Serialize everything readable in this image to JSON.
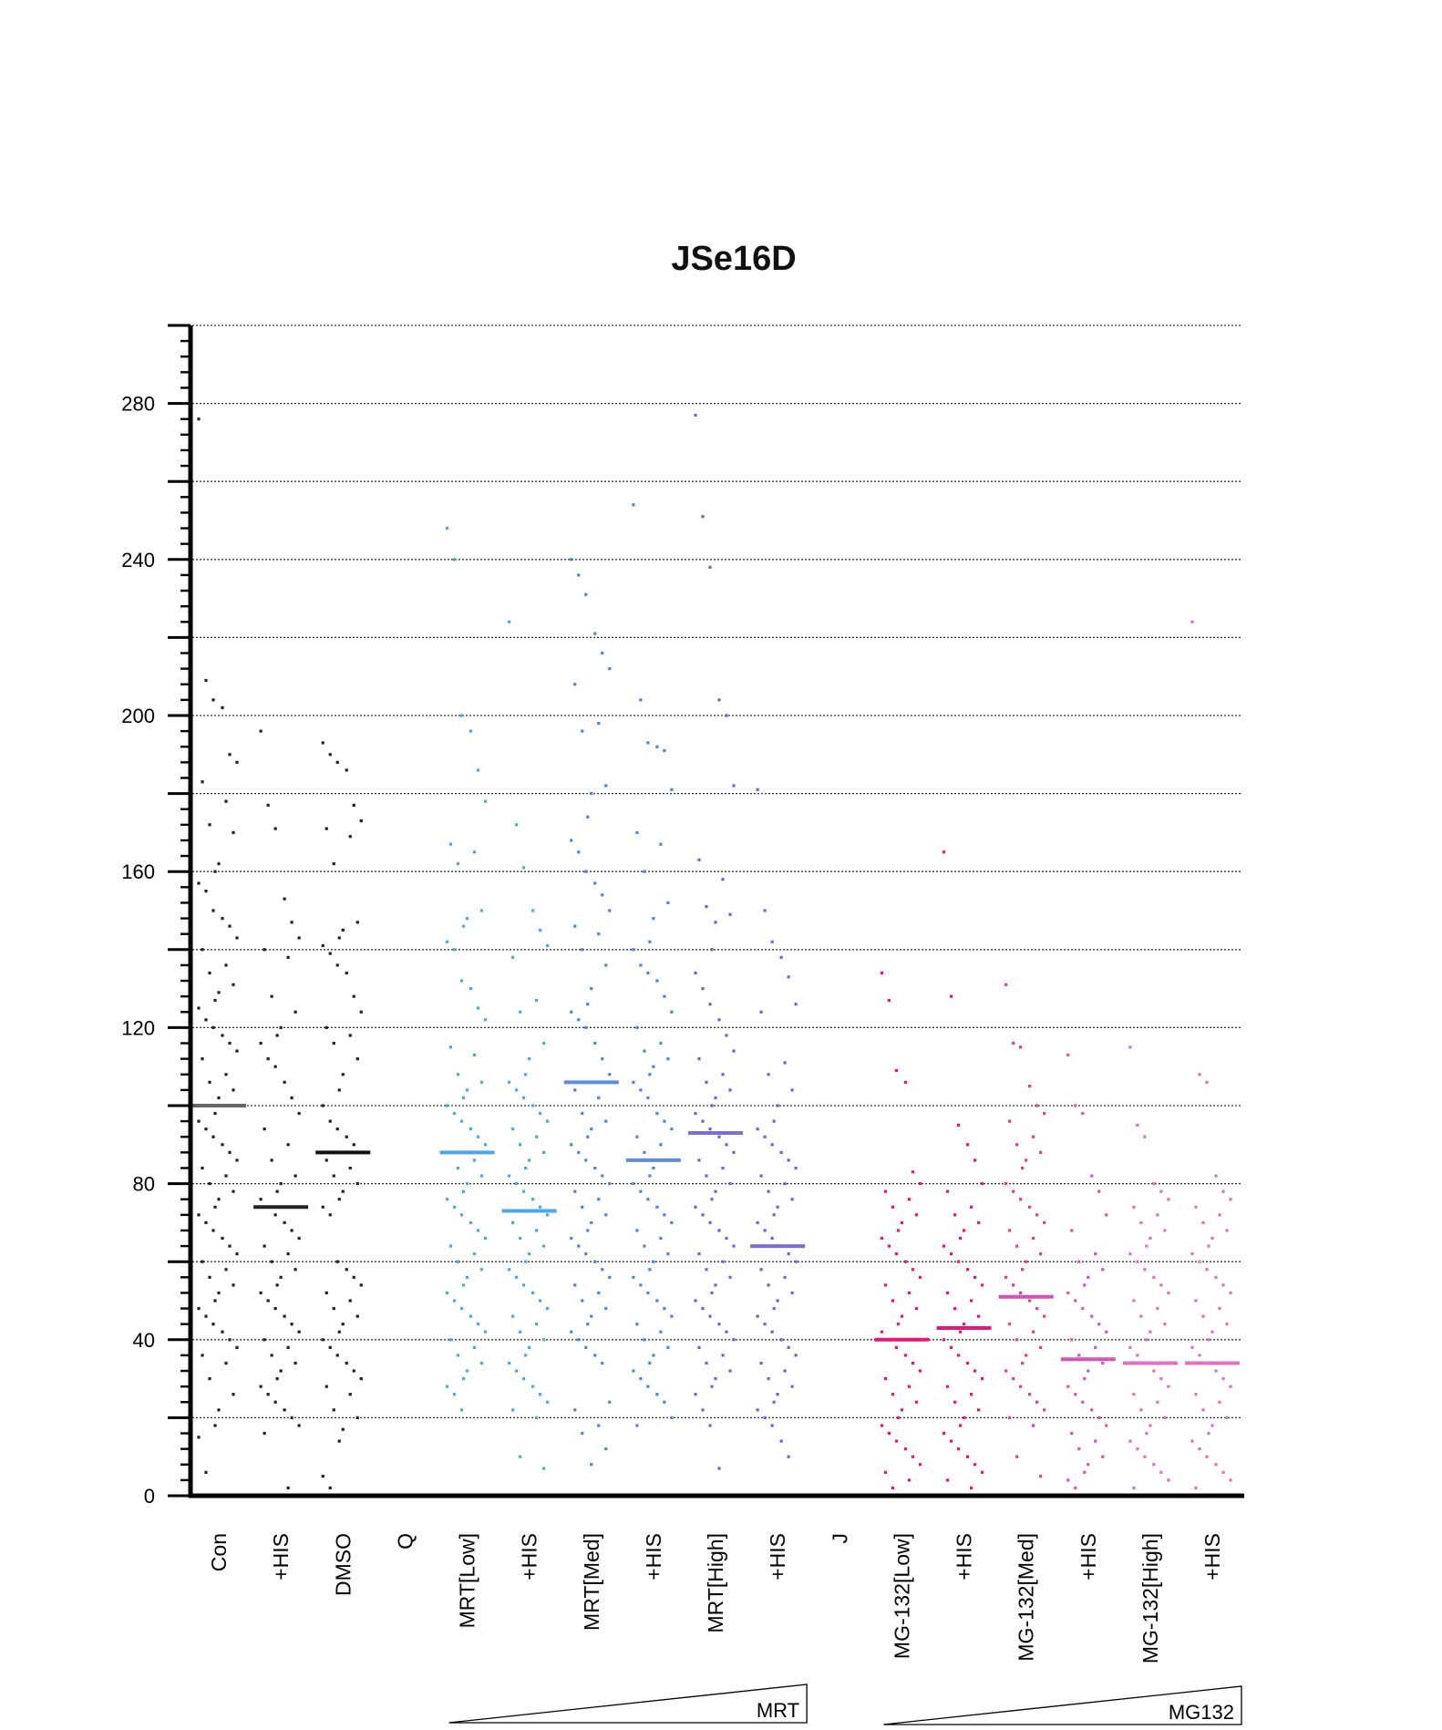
{
  "chart_data": {
    "type": "scatter",
    "title": "JSe16D",
    "xlabel": "",
    "ylabel": "",
    "ylim": [
      0,
      300
    ],
    "yticks": [
      0,
      40,
      80,
      120,
      160,
      200,
      240,
      280
    ],
    "y_gridlines": [
      20,
      40,
      60,
      80,
      100,
      120,
      140,
      160,
      180,
      200,
      220,
      240,
      260,
      280,
      300
    ],
    "grid": "dotted horizontal",
    "legend": "none",
    "categories": [
      "Con",
      "+HIS",
      "DMSO",
      "Q",
      "MRT[Low]",
      "+HIS",
      "MRT[Med]",
      "+HIS",
      "MRT[High]",
      "+HIS",
      "J",
      "MG-132[Low]",
      "+HIS",
      "MG-132[Med]",
      "+HIS",
      "MG-132[High]",
      "+HIS"
    ],
    "series": [
      {
        "category_index": 0,
        "color": "#222222",
        "mean_color": "#666666",
        "mean": 100,
        "values": [
          276,
          209,
          204,
          202,
          190,
          188,
          183,
          178,
          172,
          170,
          162,
          160,
          157,
          155,
          150,
          148,
          146,
          143,
          140,
          136,
          134,
          131,
          129,
          127,
          125,
          122,
          120,
          118,
          116,
          114,
          112,
          108,
          106,
          104,
          102,
          98,
          96,
          94,
          92,
          90,
          88,
          86,
          84,
          82,
          80,
          78,
          76,
          74,
          72,
          70,
          68,
          66,
          64,
          62,
          60,
          58,
          56,
          54,
          52,
          50,
          48,
          46,
          44,
          42,
          40,
          38,
          36,
          34,
          30,
          26,
          22,
          18,
          15,
          6
        ]
      },
      {
        "category_index": 1,
        "color": "#222222",
        "mean_color": "#222222",
        "mean": 74,
        "values": [
          196,
          177,
          171,
          153,
          147,
          143,
          140,
          138,
          128,
          124,
          120,
          118,
          116,
          112,
          110,
          106,
          102,
          98,
          94,
          90,
          86,
          82,
          80,
          78,
          76,
          74,
          72,
          70,
          68,
          66,
          64,
          62,
          60,
          58,
          56,
          54,
          52,
          50,
          48,
          46,
          44,
          42,
          40,
          38,
          36,
          34,
          32,
          30,
          28,
          26,
          24,
          22,
          20,
          18,
          16,
          2
        ]
      },
      {
        "category_index": 2,
        "color": "#222222",
        "mean_color": "#111111",
        "mean": 88,
        "values": [
          193,
          190,
          188,
          186,
          177,
          173,
          171,
          169,
          162,
          147,
          145,
          143,
          141,
          139,
          136,
          134,
          128,
          124,
          120,
          118,
          116,
          112,
          108,
          104,
          100,
          96,
          94,
          92,
          90,
          88,
          86,
          84,
          82,
          80,
          78,
          76,
          74,
          72,
          60,
          58,
          56,
          54,
          52,
          50,
          48,
          46,
          44,
          42,
          40,
          38,
          36,
          34,
          32,
          30,
          28,
          26,
          22,
          20,
          17,
          14,
          5,
          2
        ]
      },
      {
        "category_index": 4,
        "color": "#4aa8e8",
        "mean_color": "#4aa8e8",
        "mean": 88,
        "values": [
          248,
          240,
          200,
          196,
          186,
          178,
          167,
          165,
          162,
          150,
          148,
          146,
          142,
          140,
          132,
          130,
          125,
          122,
          115,
          113,
          108,
          106,
          104,
          102,
          100,
          98,
          96,
          94,
          92,
          90,
          88,
          86,
          84,
          82,
          80,
          78,
          76,
          74,
          72,
          70,
          68,
          66,
          64,
          62,
          60,
          58,
          56,
          54,
          52,
          50,
          48,
          46,
          44,
          42,
          40,
          38,
          36,
          34,
          32,
          30,
          28,
          26,
          22
        ]
      },
      {
        "category_index": 5,
        "color": "#4aa8e8",
        "mean_color": "#4aa8e8",
        "mean": 73,
        "values": [
          224,
          172,
          161,
          150,
          145,
          141,
          138,
          127,
          124,
          116,
          112,
          108,
          106,
          104,
          102,
          100,
          98,
          96,
          94,
          92,
          90,
          88,
          86,
          84,
          82,
          80,
          78,
          76,
          74,
          72,
          70,
          68,
          66,
          64,
          62,
          60,
          58,
          56,
          54,
          52,
          50,
          48,
          46,
          44,
          42,
          40,
          38,
          36,
          34,
          32,
          30,
          28,
          26,
          24,
          22,
          20,
          10,
          7
        ]
      },
      {
        "category_index": 6,
        "color": "#4a86e0",
        "mean_color": "#5b8de0",
        "mean": 106,
        "values": [
          240,
          236,
          231,
          221,
          216,
          212,
          208,
          198,
          196,
          182,
          180,
          174,
          168,
          165,
          160,
          157,
          154,
          150,
          146,
          144,
          140,
          136,
          130,
          126,
          124,
          122,
          120,
          116,
          112,
          108,
          104,
          102,
          98,
          96,
          94,
          92,
          90,
          88,
          86,
          84,
          82,
          80,
          78,
          76,
          74,
          72,
          70,
          68,
          66,
          64,
          62,
          60,
          58,
          56,
          54,
          52,
          50,
          48,
          46,
          44,
          42,
          40,
          38,
          36,
          34,
          24,
          22,
          18,
          16,
          12,
          8
        ]
      },
      {
        "category_index": 7,
        "color": "#4a86e0",
        "mean_color": "#5b8de0",
        "mean": 86,
        "values": [
          254,
          204,
          193,
          192,
          191,
          181,
          170,
          167,
          160,
          152,
          148,
          142,
          140,
          136,
          134,
          132,
          128,
          124,
          120,
          116,
          114,
          112,
          110,
          108,
          106,
          104,
          102,
          98,
          96,
          94,
          92,
          90,
          88,
          86,
          84,
          82,
          80,
          78,
          76,
          74,
          72,
          70,
          68,
          66,
          64,
          62,
          60,
          58,
          56,
          54,
          52,
          50,
          48,
          46,
          44,
          42,
          40,
          38,
          36,
          34,
          32,
          30,
          28,
          26,
          24,
          20,
          18
        ]
      },
      {
        "category_index": 8,
        "color": "#6d63d8",
        "mean_color": "#7a6edc",
        "mean": 93,
        "values": [
          277,
          251,
          238,
          204,
          200,
          182,
          163,
          158,
          151,
          149,
          147,
          140,
          134,
          130,
          126,
          122,
          118,
          114,
          112,
          108,
          106,
          104,
          102,
          100,
          98,
          96,
          94,
          92,
          90,
          88,
          86,
          84,
          82,
          80,
          78,
          76,
          74,
          72,
          70,
          68,
          66,
          64,
          62,
          60,
          58,
          56,
          54,
          52,
          50,
          48,
          46,
          44,
          42,
          40,
          38,
          36,
          34,
          32,
          30,
          28,
          26,
          22,
          18,
          7
        ]
      },
      {
        "category_index": 9,
        "color": "#6d63d8",
        "mean_color": "#7a6edc",
        "mean": 64,
        "values": [
          181,
          150,
          142,
          138,
          133,
          126,
          124,
          111,
          108,
          104,
          100,
          96,
          94,
          92,
          90,
          88,
          86,
          84,
          82,
          80,
          78,
          76,
          74,
          72,
          70,
          68,
          66,
          64,
          62,
          60,
          58,
          56,
          54,
          52,
          50,
          48,
          46,
          44,
          42,
          40,
          38,
          36,
          34,
          32,
          30,
          28,
          26,
          24,
          22,
          20,
          18,
          14,
          10
        ]
      },
      {
        "category_index": 11,
        "color": "#e8157a",
        "mean_color": "#e8157a",
        "mean": 40,
        "values": [
          134,
          127,
          109,
          106,
          83,
          80,
          78,
          76,
          74,
          72,
          70,
          68,
          66,
          64,
          62,
          60,
          58,
          56,
          54,
          52,
          50,
          48,
          46,
          44,
          42,
          40,
          38,
          36,
          34,
          32,
          30,
          28,
          26,
          24,
          22,
          20,
          18,
          16,
          14,
          12,
          10,
          8,
          6,
          4,
          2
        ]
      },
      {
        "category_index": 12,
        "color": "#e8157a",
        "mean_color": "#e8157a",
        "mean": 43,
        "values": [
          165,
          128,
          95,
          90,
          86,
          80,
          78,
          74,
          72,
          70,
          68,
          66,
          64,
          62,
          60,
          58,
          56,
          54,
          52,
          50,
          48,
          46,
          44,
          42,
          40,
          38,
          36,
          34,
          32,
          30,
          28,
          26,
          24,
          22,
          20,
          18,
          16,
          14,
          12,
          10,
          8,
          6,
          4,
          2
        ]
      },
      {
        "category_index": 13,
        "color": "#d6409e",
        "mean_color": "#d64fb0",
        "mean": 51,
        "values": [
          131,
          116,
          115,
          105,
          100,
          98,
          96,
          92,
          90,
          88,
          86,
          84,
          80,
          78,
          76,
          74,
          72,
          70,
          68,
          66,
          64,
          62,
          60,
          58,
          56,
          54,
          52,
          50,
          48,
          46,
          44,
          42,
          40,
          38,
          36,
          34,
          32,
          30,
          28,
          26,
          24,
          22,
          20,
          18,
          10,
          5
        ]
      },
      {
        "category_index": 14,
        "color": "#d655b5",
        "mean_color": "#d655b5",
        "mean": 35,
        "values": [
          113,
          100,
          98,
          82,
          78,
          72,
          68,
          62,
          60,
          58,
          56,
          54,
          52,
          50,
          48,
          46,
          44,
          42,
          40,
          38,
          36,
          34,
          32,
          30,
          28,
          26,
          24,
          22,
          20,
          18,
          16,
          14,
          12,
          10,
          8,
          6,
          4,
          2
        ]
      },
      {
        "category_index": 15,
        "color": "#e070c4",
        "mean_color": "#e070c4",
        "mean": 34,
        "values": [
          115,
          95,
          92,
          80,
          78,
          76,
          74,
          72,
          70,
          68,
          66,
          64,
          62,
          60,
          58,
          56,
          54,
          52,
          50,
          48,
          46,
          44,
          42,
          40,
          38,
          36,
          34,
          32,
          30,
          28,
          26,
          24,
          22,
          20,
          18,
          16,
          14,
          12,
          10,
          8,
          6,
          4,
          2
        ]
      },
      {
        "category_index": 16,
        "color": "#e070c4",
        "mean_color": "#e070c4",
        "mean": 34,
        "values": [
          224,
          108,
          106,
          82,
          78,
          76,
          74,
          72,
          70,
          68,
          66,
          64,
          62,
          60,
          58,
          56,
          54,
          52,
          50,
          48,
          46,
          44,
          42,
          40,
          38,
          36,
          34,
          32,
          30,
          28,
          26,
          24,
          22,
          20,
          18,
          16,
          14,
          12,
          10,
          8,
          6,
          4,
          2
        ]
      }
    ],
    "annotations": [
      {
        "text": "MRT",
        "from_category": 4,
        "to_category": 9
      },
      {
        "text": "MG132",
        "from_category": 11,
        "to_category": 16
      }
    ]
  }
}
